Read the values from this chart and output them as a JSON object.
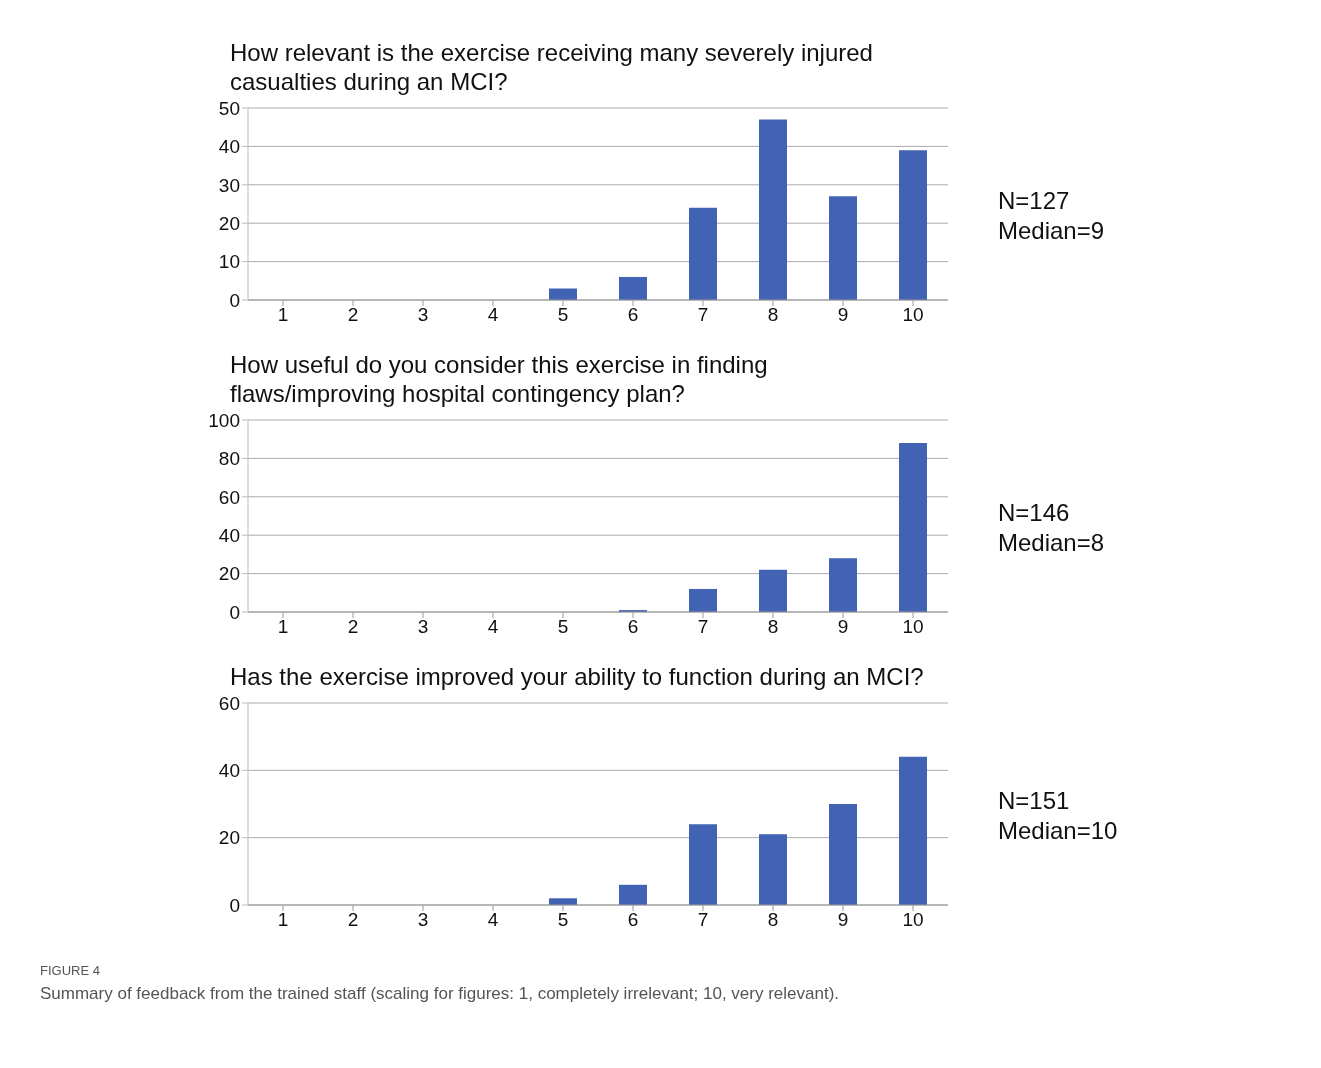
{
  "chart_data": [
    {
      "type": "bar",
      "title": "How relevant is the exercise receiving many severely injured casualties during an MCI?",
      "categories": [
        "1",
        "2",
        "3",
        "4",
        "5",
        "6",
        "7",
        "8",
        "9",
        "10"
      ],
      "values": [
        0,
        0,
        0,
        0,
        3,
        6,
        24,
        47,
        27,
        39
      ],
      "color": "#4263b4",
      "ylim": [
        0,
        50
      ],
      "yticks": [
        0,
        10,
        20,
        30,
        40,
        50
      ],
      "grid": "y",
      "annotations": [
        "N=127",
        "Median=9"
      ]
    },
    {
      "type": "bar",
      "title": "How useful do you consider this exercise in finding flaws/improving hospital contingency plan?",
      "categories": [
        "1",
        "2",
        "3",
        "4",
        "5",
        "6",
        "7",
        "8",
        "9",
        "10"
      ],
      "values": [
        0,
        0,
        0,
        0,
        0,
        1,
        12,
        22,
        28,
        88
      ],
      "color": "#4263b4",
      "ylim": [
        0,
        100
      ],
      "yticks": [
        0,
        20,
        40,
        60,
        80,
        100
      ],
      "grid": "y",
      "annotations": [
        "N=146",
        "Median=8"
      ]
    },
    {
      "type": "bar",
      "title": "Has the exercise improved your ability to function during an MCI?",
      "categories": [
        "1",
        "2",
        "3",
        "4",
        "5",
        "6",
        "7",
        "8",
        "9",
        "10"
      ],
      "values": [
        0,
        0,
        0,
        0,
        2,
        6,
        24,
        21,
        30,
        44
      ],
      "color": "#4263b4",
      "ylim": [
        0,
        60
      ],
      "yticks": [
        0,
        20,
        40,
        60
      ],
      "grid": "y",
      "annotations": [
        "N=151",
        "Median=10",
        "FIGURE 4",
        "Summary of feedback from the trained staff (scaling for figures: 1, completely irrelevant; 10, very relevant)."
      ]
    }
  ]
}
